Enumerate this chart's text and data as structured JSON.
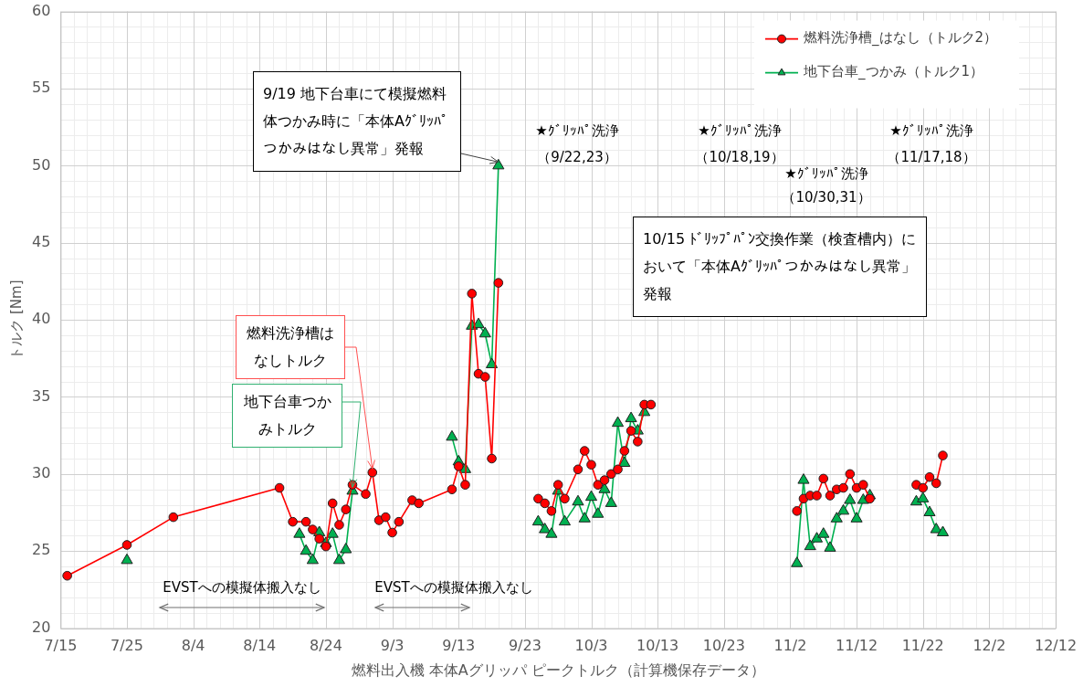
{
  "chart_data": {
    "type": "line",
    "xlabel": "燃料出入機 本体Aグリッパ ピークトルク（計算機保存データ）",
    "ylabel": "トルク [Nm]",
    "xlim": [
      "--07-15",
      "--12-12"
    ],
    "xticks": [
      {
        "value": "--07-15",
        "label": "7/15"
      },
      {
        "value": "--07-25",
        "label": "7/25"
      },
      {
        "value": "--08-04",
        "label": "8/4"
      },
      {
        "value": "--08-14",
        "label": "8/14"
      },
      {
        "value": "--08-24",
        "label": "8/24"
      },
      {
        "value": "--09-03",
        "label": "9/3"
      },
      {
        "value": "--09-13",
        "label": "9/13"
      },
      {
        "value": "--09-23",
        "label": "9/23"
      },
      {
        "value": "--10-03",
        "label": "10/3"
      },
      {
        "value": "--10-13",
        "label": "10/13"
      },
      {
        "value": "--10-23",
        "label": "10/23"
      },
      {
        "value": "--11-02",
        "label": "11/2"
      },
      {
        "value": "--11-12",
        "label": "11/12"
      },
      {
        "value": "--11-22",
        "label": "11/22"
      },
      {
        "value": "--12-02",
        "label": "12/2"
      },
      {
        "value": "--12-12",
        "label": "12/12"
      }
    ],
    "ylim": [
      20,
      60
    ],
    "yticks": [
      20,
      25,
      30,
      35,
      40,
      45,
      50,
      55,
      60
    ],
    "grid": true,
    "legend": "top right",
    "line_style": "solid",
    "series": [
      {
        "name": "燃料洗浄槽_はなし（トルク2）",
        "color": "#ff0000",
        "marker": "circle",
        "x": [
          "--07-16",
          "--07-25",
          "--08-01",
          "--08-17",
          "--08-19",
          "--08-21",
          "--08-22",
          "--08-23",
          "--08-24",
          "--08-25",
          "--08-26",
          "--08-27",
          "--08-28",
          "--08-30",
          "--08-31",
          "--09-01",
          "--09-02",
          "--09-03",
          "--09-04",
          "--09-06",
          "--09-07",
          "--09-12",
          "--09-13",
          "--09-14",
          "--09-15",
          "--09-16",
          "--09-17",
          "--09-18",
          "--09-19",
          "--09-22",
          "--09-25",
          "--09-26",
          "--09-27",
          "--09-28",
          "--09-29",
          "--10-01",
          "--10-02",
          "--10-03",
          "--10-04",
          "--10-05",
          "--10-06",
          "--10-07",
          "--10-08",
          "--10-09",
          "--10-10",
          "--10-11",
          "--10-12",
          "--10-20",
          "--11-03",
          "--11-04",
          "--11-05",
          "--11-06",
          "--11-07",
          "--11-08",
          "--11-09",
          "--11-10",
          "--11-11",
          "--11-12",
          "--11-13",
          "--11-14",
          "--11-17",
          "--11-21",
          "--11-22",
          "--11-23",
          "--11-24",
          "--11-25"
        ],
        "values": [
          23.4,
          25.4,
          27.2,
          29.1,
          26.9,
          26.9,
          26.4,
          25.8,
          25.3,
          28.1,
          26.7,
          27.7,
          29.3,
          28.7,
          30.1,
          27.0,
          27.2,
          26.2,
          26.9,
          28.3,
          28.1,
          29.0,
          30.5,
          29.3,
          41.7,
          36.5,
          36.3,
          31.0,
          42.4,
          null,
          28.4,
          28.1,
          27.6,
          29.3,
          28.4,
          30.3,
          31.5,
          30.6,
          29.3,
          29.6,
          30.0,
          30.3,
          31.5,
          32.8,
          32.1,
          34.5,
          34.5,
          null,
          27.6,
          28.4,
          28.6,
          28.6,
          29.7,
          28.6,
          29.0,
          29.1,
          30.0,
          29.1,
          29.3,
          28.4,
          null,
          29.3,
          29.1,
          29.8,
          29.4,
          31.2
        ]
      },
      {
        "name": "地下台車_つかみ（トルク1）",
        "color": "#00b050",
        "marker": "triangle",
        "x": [
          "--07-25",
          "--08-01",
          "--08-20",
          "--08-21",
          "--08-22",
          "--08-23",
          "--08-24",
          "--08-25",
          "--08-26",
          "--08-27",
          "--08-28",
          "--09-05",
          "--09-12",
          "--09-13",
          "--09-14",
          "--09-15",
          "--09-16",
          "--09-17",
          "--09-18",
          "--09-19",
          "--09-22",
          "--09-25",
          "--09-26",
          "--09-27",
          "--09-28",
          "--09-29",
          "--10-01",
          "--10-02",
          "--10-03",
          "--10-04",
          "--10-05",
          "--10-06",
          "--10-07",
          "--10-08",
          "--10-09",
          "--10-10",
          "--10-11",
          "--10-20",
          "--11-03",
          "--11-04",
          "--11-05",
          "--11-06",
          "--11-07",
          "--11-08",
          "--11-09",
          "--11-10",
          "--11-11",
          "--11-12",
          "--11-13",
          "--11-14",
          "--11-17",
          "--11-21",
          "--11-22",
          "--11-23",
          "--11-24",
          "--11-25"
        ],
        "values": [
          24.4,
          null,
          26.1,
          25.0,
          24.4,
          26.2,
          25.5,
          26.1,
          24.4,
          25.1,
          28.9,
          null,
          32.4,
          30.8,
          30.3,
          39.6,
          39.7,
          39.1,
          37.1,
          50.0,
          null,
          26.9,
          26.4,
          26.1,
          28.9,
          26.9,
          28.2,
          27.1,
          28.5,
          27.4,
          29.0,
          28.1,
          33.3,
          30.7,
          33.6,
          32.8,
          34.0,
          null,
          24.2,
          29.6,
          25.3,
          25.8,
          26.1,
          25.2,
          27.1,
          27.6,
          28.3,
          27.1,
          28.3,
          28.6,
          null,
          28.2,
          28.4,
          27.5,
          26.4,
          26.2
        ]
      }
    ],
    "annotations": [
      {
        "text": "9/19 地下台車にて模擬燃料体つかみ時に「本体Aｸﾞﾘｯﾊﾟつかみはなし異常」発報",
        "x": "--09-19",
        "y": 50.0
      },
      {
        "text": "燃料洗浄槽はなしトルク",
        "x": "--08-31",
        "y": 30.1
      },
      {
        "text": "地下台車つかみトルク",
        "x": "--08-28",
        "y": 28.9
      },
      "10/15 ﾄﾞﾘｯﾌﾟﾊﾟﾝ交換作業（検査槽内）において「本体Aｸﾞﾘｯﾊﾟつかみはなし異常」発報",
      "★ｸﾞﾘｯﾊﾟ洗浄",
      "（9/22,23）",
      "★ｸﾞﾘｯﾊﾟ洗浄",
      "（10/18,19）",
      "★ｸﾞﾘｯﾊﾟ洗浄",
      "（10/30,31）",
      "★ｸﾞﾘｯﾊﾟ洗浄",
      "（11/17,18）",
      "EVSTへの模擬体搬入なし",
      "EVSTへの模擬体搬入なし"
    ]
  }
}
